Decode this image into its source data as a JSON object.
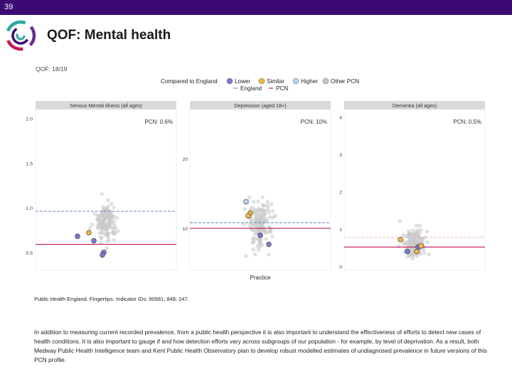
{
  "slide": {
    "number": "39",
    "title": "QOF: Mental health"
  },
  "colors": {
    "brand_bar": "#3b0a73",
    "lower": "#7b79d6",
    "similar": "#f0b840",
    "higher": "#bcd2f3",
    "other_pcn": "#c8c8c8",
    "england_line": "#6f8fbf",
    "pcn_line": "#c2185b"
  },
  "chart_data": {
    "type": "scatter",
    "title": "QOF: 18/19",
    "xlabel": "Practice",
    "legend": {
      "placement": "top",
      "compare_title": "Compared to England",
      "compare_items": [
        "Lower",
        "Similar",
        "Higher",
        "Other PCN"
      ],
      "line_items": [
        "England",
        "PCN"
      ]
    },
    "panels": [
      {
        "strip": "Serious Mental Illness (all ages)",
        "pcn_label": "PCN: 0.6%",
        "ylim": [
          0.3,
          2.1
        ],
        "yticks": [
          "0.5",
          "1.0",
          "1.5",
          "2.0"
        ],
        "england": 0.96,
        "pcn": 0.59,
        "highlight": [
          {
            "group": "Lower",
            "value": 0.68
          },
          {
            "group": "Similar",
            "value": 0.72
          },
          {
            "group": "Lower",
            "value": 0.63
          },
          {
            "group": "Lower",
            "value": 0.5
          },
          {
            "group": "Lower",
            "value": 0.47
          }
        ]
      },
      {
        "strip": "Depression (aged 18+)",
        "pcn_label": "PCN: 10%",
        "ylim": [
          4,
          27
        ],
        "yticks": [
          "10",
          "20"
        ],
        "england": 10.8,
        "pcn": 10.0,
        "highlight": [
          {
            "group": "Higher",
            "value": 13.8
          },
          {
            "group": "Similar",
            "value": 12.2
          },
          {
            "group": "Similar",
            "value": 11.8
          },
          {
            "group": "Lower",
            "value": 9.0
          },
          {
            "group": "Lower",
            "value": 7.7
          }
        ]
      },
      {
        "strip": "Dementia (all ages)",
        "pcn_label": "PCN: 0.5%",
        "ylim": [
          -0.1,
          4.2
        ],
        "yticks": [
          "0",
          "1",
          "2",
          "3",
          "4"
        ],
        "england": 0.78,
        "pcn": 0.52,
        "highlight": [
          {
            "group": "Similar",
            "value": 0.72
          },
          {
            "group": "Lower",
            "value": 0.4
          },
          {
            "group": "Lower",
            "value": 0.52
          },
          {
            "group": "Similar",
            "value": 0.55
          },
          {
            "group": "Similar",
            "value": 0.4
          }
        ]
      }
    ]
  },
  "source": "Public Health England. Fingertips. Indicator IDs: 90581; 848; 247.",
  "body": "In addition to measuring current recorded prevalence, from a public health perspective it is also important to understand the effectiveness of efforts to detect new cases of health conditions. It is also important to gauge if and how detection efforts vary across subgroups of our population - for example, by level of deprivation. As a result, both Medway Public Health Intelligence team and Kent Public Health Observatory plan to develop robust modelled estimates of undiagnosed prevalence in future versions of this PCN profile."
}
